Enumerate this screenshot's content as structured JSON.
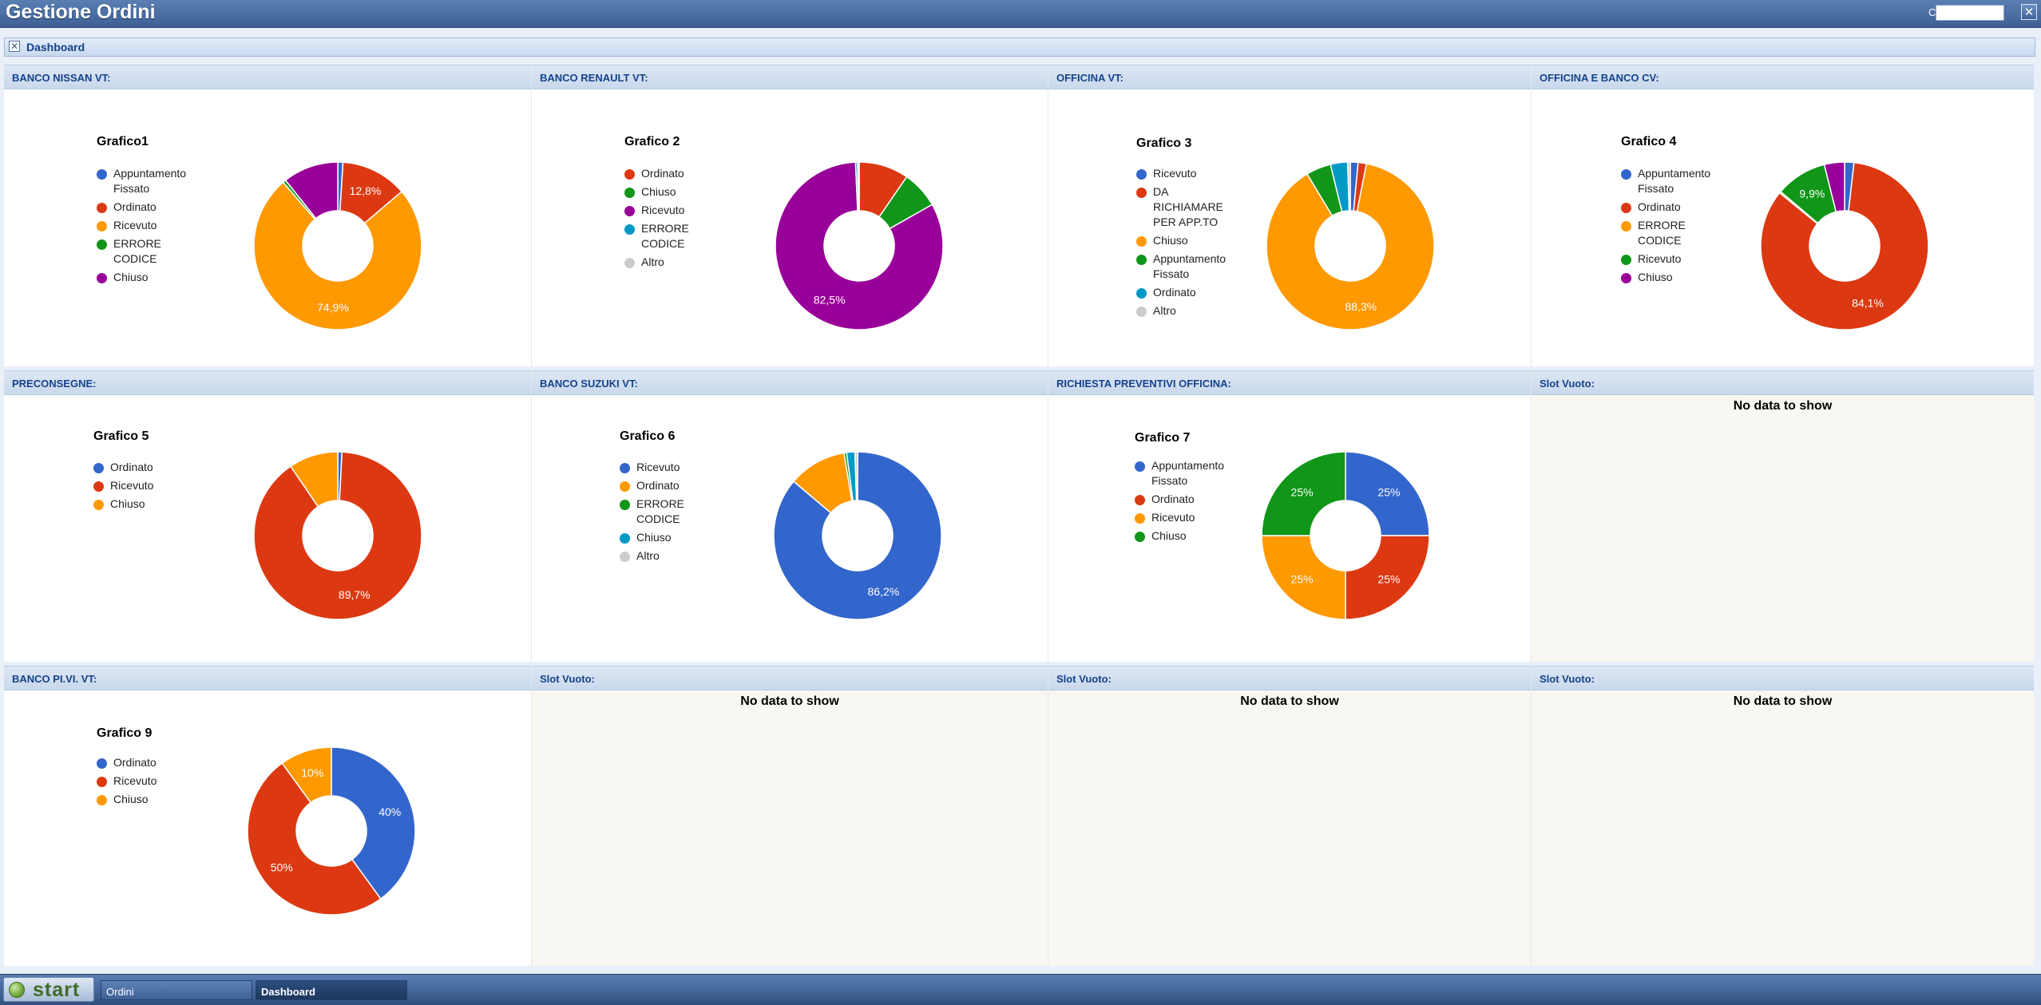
{
  "app": {
    "title": "Gestione Ordini",
    "cmd_label": "Cmd:",
    "cmd_value": "",
    "close_symbol": "✕"
  },
  "dashboard": {
    "title": "Dashboard",
    "close_symbol": "✕"
  },
  "panels": [
    {
      "header": "BANCO NISSAN VT:",
      "chart": {
        "title": "Grafico1",
        "legend": [
          "Appuntamento\nFissato",
          "Ordinato",
          "Ricevuto",
          "ERRORE\nCODICE",
          "Chiuso"
        ],
        "legend_colors": [
          "#3366cc",
          "#dc3912",
          "#ff9900",
          "#109618",
          "#990099"
        ],
        "slices": [
          {
            "value": 1.0,
            "color": "#3366cc",
            "label": ""
          },
          {
            "value": 12.8,
            "color": "#dc3912",
            "label": "12,8%"
          },
          {
            "value": 74.9,
            "color": "#ff9900",
            "label": "74,9%"
          },
          {
            "value": 0.6,
            "color": "#109618",
            "label": ""
          },
          {
            "value": 10.7,
            "color": "#990099",
            "label": ""
          }
        ]
      }
    },
    {
      "header": "BANCO RENAULT VT:",
      "chart": {
        "title": "Grafico 2",
        "legend": [
          "Ordinato",
          "Chiuso",
          "Ricevuto",
          "ERRORE\nCODICE",
          "Altro"
        ],
        "legend_colors": [
          "#dc3912",
          "#109618",
          "#990099",
          "#0099c6",
          "#cccccc"
        ],
        "slices": [
          {
            "value": 9.6,
            "color": "#dc3912",
            "label": ""
          },
          {
            "value": 7.2,
            "color": "#109618",
            "label": ""
          },
          {
            "value": 82.5,
            "color": "#990099",
            "label": "82,5%"
          },
          {
            "value": 0.4,
            "color": "#0099c6",
            "label": ""
          },
          {
            "value": 0.3,
            "color": "#cccccc",
            "label": ""
          }
        ]
      }
    },
    {
      "header": "OFFICINA VT:",
      "chart": {
        "title": "Grafico 3",
        "legend": [
          "Ricevuto",
          "DA\nRICHIAMARE\nPER APP.TO",
          "Chiuso",
          "Appuntamento\nFissato",
          "Ordinato",
          "Altro"
        ],
        "legend_colors": [
          "#3366cc",
          "#dc3912",
          "#ff9900",
          "#109618",
          "#0099c6",
          "#cccccc"
        ],
        "slices": [
          {
            "value": 1.5,
            "color": "#3366cc",
            "label": ""
          },
          {
            "value": 1.6,
            "color": "#dc3912",
            "label": ""
          },
          {
            "value": 88.3,
            "color": "#ff9900",
            "label": "88,3%"
          },
          {
            "value": 4.8,
            "color": "#109618",
            "label": ""
          },
          {
            "value": 3.3,
            "color": "#0099c6",
            "label": ""
          },
          {
            "value": 0.5,
            "color": "#cccccc",
            "label": ""
          }
        ]
      }
    },
    {
      "header": "OFFICINA E BANCO CV:",
      "chart": {
        "title": "Grafico 4",
        "legend": [
          "Appuntamento\nFissato",
          "Ordinato",
          "ERRORE\nCODICE",
          "Ricevuto",
          "Chiuso"
        ],
        "legend_colors": [
          "#3366cc",
          "#dc3912",
          "#ff9900",
          "#109618",
          "#990099"
        ],
        "slices": [
          {
            "value": 1.8,
            "color": "#3366cc",
            "label": ""
          },
          {
            "value": 84.1,
            "color": "#dc3912",
            "label": "84,1%"
          },
          {
            "value": 0.3,
            "color": "#ff9900",
            "label": ""
          },
          {
            "value": 9.9,
            "color": "#109618",
            "label": "9,9%"
          },
          {
            "value": 3.9,
            "color": "#990099",
            "label": ""
          }
        ]
      }
    },
    {
      "header": "PRECONSEGNE:",
      "chart": {
        "title": "Grafico 5",
        "legend": [
          "Ordinato",
          "Ricevuto",
          "Chiuso"
        ],
        "legend_colors": [
          "#3366cc",
          "#dc3912",
          "#ff9900"
        ],
        "slices": [
          {
            "value": 0.8,
            "color": "#3366cc",
            "label": ""
          },
          {
            "value": 89.7,
            "color": "#dc3912",
            "label": "89,7%"
          },
          {
            "value": 9.5,
            "color": "#ff9900",
            "label": ""
          }
        ]
      }
    },
    {
      "header": "BANCO SUZUKI VT:",
      "chart": {
        "title": "Grafico 6",
        "legend": [
          "Ricevuto",
          "Ordinato",
          "ERRORE\nCODICE",
          "Chiuso",
          "Altro"
        ],
        "legend_colors": [
          "#3366cc",
          "#ff9900",
          "#109618",
          "#0099c6",
          "#cccccc"
        ],
        "slices": [
          {
            "value": 86.2,
            "color": "#3366cc",
            "label": "86,2%"
          },
          {
            "value": 11.2,
            "color": "#ff9900",
            "label": ""
          },
          {
            "value": 0.5,
            "color": "#109618",
            "label": ""
          },
          {
            "value": 1.6,
            "color": "#0099c6",
            "label": ""
          },
          {
            "value": 0.5,
            "color": "#cccccc",
            "label": ""
          }
        ]
      }
    },
    {
      "header": "RICHIESTA PREVENTIVI OFFICINA:",
      "chart": {
        "title": "Grafico 7",
        "legend": [
          "Appuntamento\nFissato",
          "Ordinato",
          "Ricevuto",
          "Chiuso"
        ],
        "legend_colors": [
          "#3366cc",
          "#dc3912",
          "#ff9900",
          "#109618"
        ],
        "slices": [
          {
            "value": 25,
            "color": "#3366cc",
            "label": "25%"
          },
          {
            "value": 25,
            "color": "#dc3912",
            "label": "25%"
          },
          {
            "value": 25,
            "color": "#ff9900",
            "label": "25%"
          },
          {
            "value": 25,
            "color": "#109618",
            "label": "25%"
          }
        ]
      }
    },
    {
      "header": "Slot Vuoto:",
      "empty_text": "No data to show"
    },
    {
      "header": "BANCO PI.VI. VT:",
      "chart": {
        "title": "Grafico 9",
        "legend": [
          "Ordinato",
          "Ricevuto",
          "Chiuso"
        ],
        "legend_colors": [
          "#3366cc",
          "#dc3912",
          "#ff9900"
        ],
        "slices": [
          {
            "value": 40,
            "color": "#3366cc",
            "label": "40%"
          },
          {
            "value": 50,
            "color": "#dc3912",
            "label": "50%"
          },
          {
            "value": 10,
            "color": "#ff9900",
            "label": "10%"
          }
        ]
      }
    },
    {
      "header": "Slot Vuoto:",
      "empty_text": "No data to show"
    },
    {
      "header": "Slot Vuoto:",
      "empty_text": "No data to show"
    },
    {
      "header": "Slot Vuoto:",
      "empty_text": "No data to show"
    }
  ],
  "taskbar": {
    "start_label": "start",
    "items": [
      "Ordini",
      "Dashboard"
    ]
  },
  "chart_data": [
    {
      "type": "pie",
      "title": "Grafico1",
      "categories": [
        "Appuntamento Fissato",
        "Ordinato",
        "Ricevuto",
        "ERRORE CODICE",
        "Chiuso"
      ],
      "values": [
        1.0,
        12.8,
        74.9,
        0.6,
        10.7
      ]
    },
    {
      "type": "pie",
      "title": "Grafico 2",
      "categories": [
        "Ordinato",
        "Chiuso",
        "Ricevuto",
        "ERRORE CODICE",
        "Altro"
      ],
      "values": [
        9.6,
        7.2,
        82.5,
        0.4,
        0.3
      ]
    },
    {
      "type": "pie",
      "title": "Grafico 3",
      "categories": [
        "Ricevuto",
        "DA RICHIAMARE PER APP.TO",
        "Chiuso",
        "Appuntamento Fissato",
        "Ordinato",
        "Altro"
      ],
      "values": [
        1.5,
        1.6,
        88.3,
        4.8,
        3.3,
        0.5
      ]
    },
    {
      "type": "pie",
      "title": "Grafico 4",
      "categories": [
        "Appuntamento Fissato",
        "Ordinato",
        "ERRORE CODICE",
        "Ricevuto",
        "Chiuso"
      ],
      "values": [
        1.8,
        84.1,
        0.3,
        9.9,
        3.9
      ]
    },
    {
      "type": "pie",
      "title": "Grafico 5",
      "categories": [
        "Ordinato",
        "Ricevuto",
        "Chiuso"
      ],
      "values": [
        0.8,
        89.7,
        9.5
      ]
    },
    {
      "type": "pie",
      "title": "Grafico 6",
      "categories": [
        "Ricevuto",
        "Ordinato",
        "ERRORE CODICE",
        "Chiuso",
        "Altro"
      ],
      "values": [
        86.2,
        11.2,
        0.5,
        1.6,
        0.5
      ]
    },
    {
      "type": "pie",
      "title": "Grafico 7",
      "categories": [
        "Appuntamento Fissato",
        "Ordinato",
        "Ricevuto",
        "Chiuso"
      ],
      "values": [
        25,
        25,
        25,
        25
      ]
    },
    {
      "type": "pie",
      "title": "Grafico 9",
      "categories": [
        "Ordinato",
        "Ricevuto",
        "Chiuso"
      ],
      "values": [
        40,
        50,
        10
      ]
    }
  ]
}
